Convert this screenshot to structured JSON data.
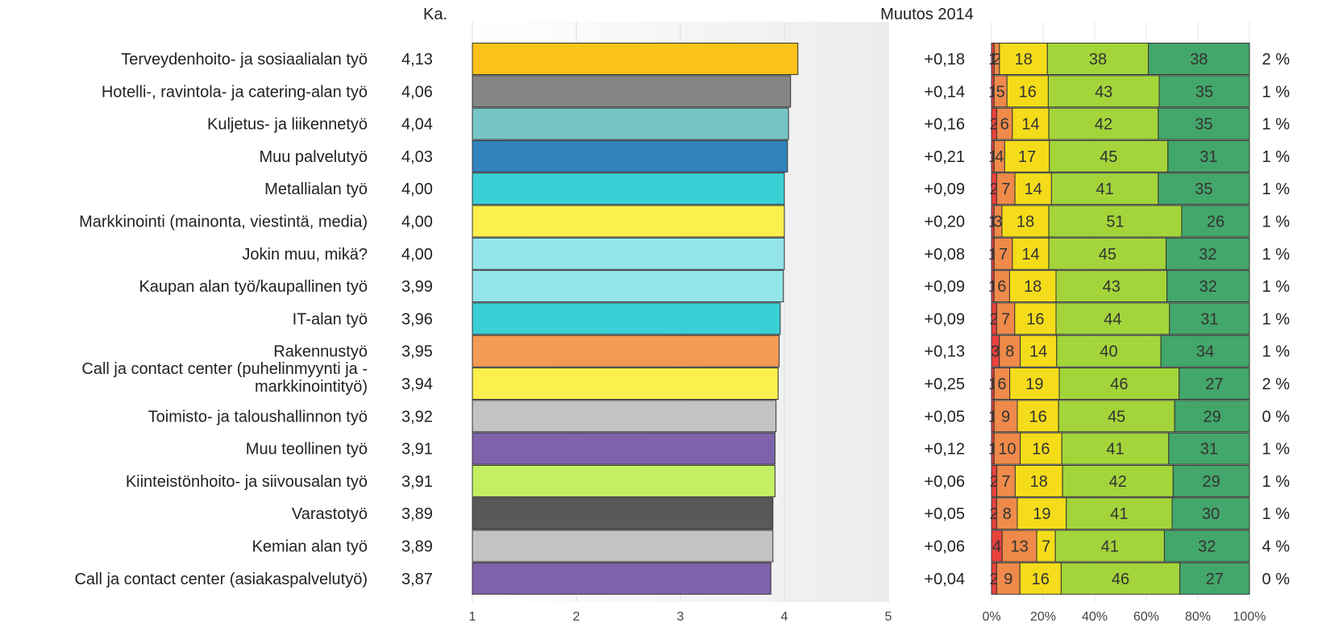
{
  "chart_data": {
    "type": "bar",
    "headers": {
      "mean": "Ka.",
      "change": "Muutos 2014"
    },
    "x_ticks": [
      "1",
      "2",
      "3",
      "4",
      "5"
    ],
    "xlim": [
      1,
      5
    ],
    "pct_ticks": [
      "0%",
      "20%",
      "40%",
      "60%",
      "80%",
      "100%"
    ],
    "rows": [
      {
        "label": "Terveydenhoito- ja sosiaalialan työ",
        "mean": 4.13,
        "mean_label": "4,13",
        "change": "+0,18",
        "color": "#fbc21a",
        "dist": [
          1,
          2,
          18,
          38,
          38
        ],
        "extra": "2 %"
      },
      {
        "label": "Hotelli-, ravintola- ja catering-alan työ",
        "mean": 4.06,
        "mean_label": "4,06",
        "change": "+0,14",
        "color": "#868686",
        "dist": [
          1,
          5,
          16,
          43,
          35
        ],
        "extra": "1 %"
      },
      {
        "label": "Kuljetus- ja liikennetyö",
        "mean": 4.04,
        "mean_label": "4,04",
        "change": "+0,16",
        "color": "#76c5c4",
        "dist": [
          2,
          6,
          14,
          42,
          35
        ],
        "extra": "1 %"
      },
      {
        "label": "Muu palvelutyö",
        "mean": 4.03,
        "mean_label": "4,03",
        "change": "+0,21",
        "color": "#3182bd",
        "dist": [
          1,
          4,
          17,
          45,
          31
        ],
        "extra": "1 %"
      },
      {
        "label": "Metallialan työ",
        "mean": 4.0,
        "mean_label": "4,00",
        "change": "+0,09",
        "color": "#3ad0d6",
        "dist": [
          2,
          7,
          14,
          41,
          35
        ],
        "extra": "1 %"
      },
      {
        "label": "Markkinointi (mainonta, viestintä, media)",
        "mean": 4.0,
        "mean_label": "4,00",
        "change": "+0,20",
        "color": "#fbf04e",
        "dist": [
          1,
          3,
          18,
          51,
          26
        ],
        "extra": "1 %"
      },
      {
        "label": "Jokin muu, mikä?",
        "mean": 4.0,
        "mean_label": "4,00",
        "change": "+0,08",
        "color": "#93e5ea",
        "dist": [
          1,
          7,
          14,
          45,
          32
        ],
        "extra": "1 %"
      },
      {
        "label": "Kaupan alan työ/kaupallinen työ",
        "mean": 3.99,
        "mean_label": "3,99",
        "change": "+0,09",
        "color": "#93e5ea",
        "dist": [
          1,
          6,
          18,
          43,
          32
        ],
        "extra": "1 %"
      },
      {
        "label": "IT-alan työ",
        "mean": 3.96,
        "mean_label": "3,96",
        "change": "+0,09",
        "color": "#3ad0d6",
        "dist": [
          2,
          7,
          16,
          44,
          31
        ],
        "extra": "1 %"
      },
      {
        "label": "Rakennustyö",
        "mean": 3.95,
        "mean_label": "3,95",
        "change": "+0,13",
        "color": "#f39a54",
        "dist": [
          3,
          8,
          14,
          40,
          34
        ],
        "extra": "1 %"
      },
      {
        "label": "Call ja contact center (puhelinmyynti ja -markkinointityö)",
        "label_lines": [
          "Call ja contact center (puhelinmyynti ja -",
          "markkinointityö)"
        ],
        "mean": 3.94,
        "mean_label": "3,94",
        "change": "+0,25",
        "color": "#fbf04e",
        "dist": [
          1,
          6,
          19,
          46,
          27
        ],
        "extra": "2 %"
      },
      {
        "label": "Toimisto- ja taloushallinnon työ",
        "mean": 3.92,
        "mean_label": "3,92",
        "change": "+0,05",
        "color": "#c3c3c3",
        "dist": [
          1,
          9,
          16,
          45,
          29
        ],
        "extra": "0 %"
      },
      {
        "label": "Muu teollinen työ",
        "mean": 3.91,
        "mean_label": "3,91",
        "change": "+0,12",
        "color": "#7e63aa",
        "dist": [
          1,
          10,
          16,
          41,
          31
        ],
        "extra": "1 %"
      },
      {
        "label": "Kiinteistönhoito- ja siivousalan työ",
        "mean": 3.91,
        "mean_label": "3,91",
        "change": "+0,06",
        "color": "#c3f063",
        "dist": [
          2,
          7,
          18,
          42,
          29
        ],
        "extra": "1 %"
      },
      {
        "label": "Varastotyö",
        "mean": 3.89,
        "mean_label": "3,89",
        "change": "+0,05",
        "color": "#595959",
        "dist": [
          2,
          8,
          19,
          41,
          30
        ],
        "extra": "1 %"
      },
      {
        "label": "Kemian alan työ",
        "mean": 3.89,
        "mean_label": "3,89",
        "change": "+0,06",
        "color": "#c3c3c3",
        "dist": [
          4,
          13,
          7,
          41,
          32
        ],
        "extra": "4 %"
      },
      {
        "label": "Call ja contact center (asiakaspalvelutyö)",
        "mean": 3.87,
        "mean_label": "3,87",
        "change": "+0,04",
        "color": "#7e63aa",
        "dist": [
          2,
          9,
          16,
          46,
          27
        ],
        "extra": "0 %"
      }
    ],
    "dist_colors": [
      "#e8413c",
      "#ef8a4a",
      "#f5dc1a",
      "#a3d53a",
      "#43a66a"
    ]
  }
}
